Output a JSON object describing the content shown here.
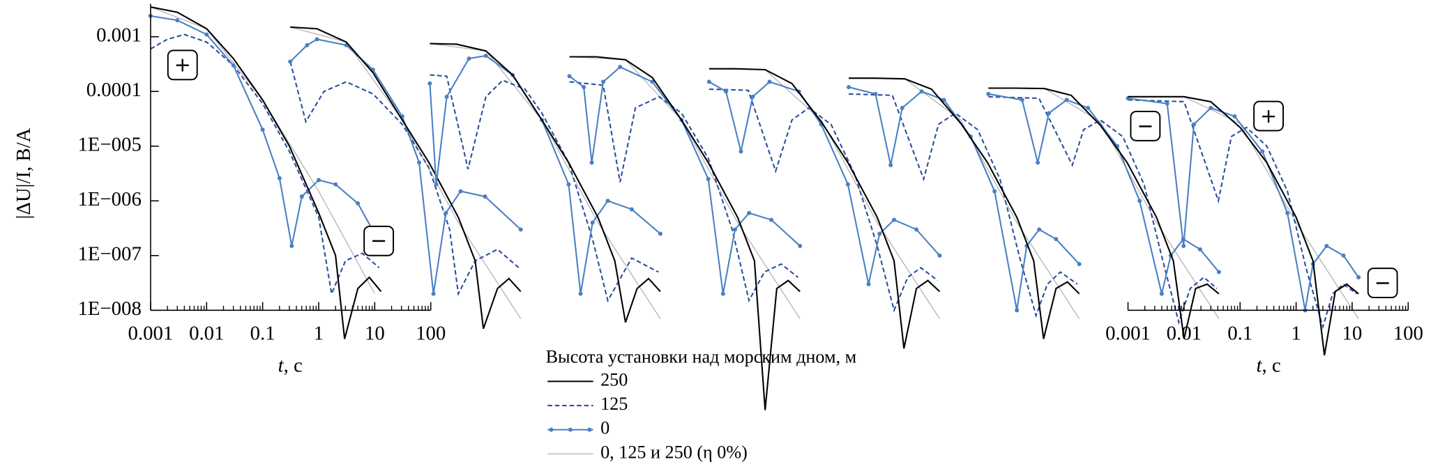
{
  "chart_data": [
    {
      "type": "line",
      "log_scale": [
        "x",
        "y"
      ],
      "ylabel": "|ΔU|/I, В/А",
      "xlabel": "t, с",
      "xlim": [
        0.001,
        100
      ],
      "xticks": [
        0.001,
        0.01,
        0.1,
        1,
        10,
        100
      ],
      "ylim": [
        1e-08,
        0.004
      ],
      "yticks": [
        0.001,
        0.0001,
        {
          "value": 1e-05,
          "label": "1E−005"
        },
        {
          "value": 1e-06,
          "label": "1E−006"
        },
        {
          "value": 1e-07,
          "label": "1E−007"
        },
        {
          "value": 1e-08,
          "label": "1E−008"
        }
      ],
      "legend_title": "Высота установки над морским дном, м",
      "annotations": [
        "+",
        "−"
      ],
      "series": [
        {
          "name": "250",
          "color": "#000000",
          "line_style": "solid",
          "x": [
            0.001,
            0.003,
            0.01,
            0.03,
            0.1,
            0.3,
            1,
            2,
            2.9,
            5,
            8,
            13
          ],
          "values": [
            0.0035,
            0.0028,
            0.0014,
            0.0004,
            7e-05,
            1e-05,
            6e-07,
            1e-07,
            3e-09,
            2.5e-08,
            4e-08,
            2.2e-08
          ]
        },
        {
          "name": "125",
          "color": "#2b4f9e",
          "line_style": "dashed",
          "x": [
            0.001,
            0.002,
            0.004,
            0.01,
            0.03,
            0.1,
            0.3,
            1,
            1.7,
            3,
            6,
            12
          ],
          "values": [
            0.0006,
            0.0009,
            0.0011,
            0.0008,
            0.0003,
            6e-05,
            8e-06,
            5e-07,
            2e-08,
            8e-08,
            1.1e-07,
            6e-08
          ]
        },
        {
          "name": "0",
          "color": "#4a80c4",
          "line_style": "solid",
          "marker": true,
          "x": [
            0.001,
            0.003,
            0.01,
            0.03,
            0.1,
            0.2,
            0.33,
            0.5,
            1,
            2,
            5,
            10
          ],
          "values": [
            0.0024,
            0.002,
            0.0011,
            0.0003,
            2e-05,
            2.6e-06,
            1.5e-07,
            1.2e-06,
            2.4e-06,
            2e-06,
            9e-07,
            2.5e-07
          ]
        },
        {
          "name": "0, 125 и 250 (η 0%)",
          "color": "#b4b4b4",
          "line_style": "thin",
          "x": [
            0.001,
            0.01,
            0.1,
            1,
            10
          ],
          "values": [
            0.0035,
            0.0014,
            7e-05,
            1.5e-06,
            2e-08
          ]
        }
      ]
    },
    {
      "type": "line",
      "series": [
        {
          "color": "#000000",
          "line_style": "solid",
          "x": [
            0.001,
            0.003,
            0.01,
            0.03,
            0.1,
            0.3,
            1,
            2,
            2.8,
            5,
            8,
            13
          ],
          "values": [
            0.0015,
            0.0014,
            0.0008,
            0.00022,
            3e-05,
            5e-06,
            5e-07,
            8e-08,
            4.6e-09,
            2.5e-08,
            3.8e-08,
            2.2e-08
          ]
        },
        {
          "color": "#2b4f9e",
          "line_style": "dashed",
          "x": [
            0.001,
            0.0019,
            0.004,
            0.01,
            0.03,
            0.1,
            0.3,
            0.7,
            1,
            2,
            5,
            12
          ],
          "values": [
            0.00035,
            2.8e-05,
            0.0001,
            0.00015,
            9e-05,
            2.5e-05,
            4e-06,
            3e-07,
            2e-08,
            8e-08,
            1.3e-07,
            6e-08
          ]
        },
        {
          "color": "#4a80c4",
          "line_style": "solid",
          "marker": true,
          "x": [
            0.001,
            0.002,
            0.003,
            0.01,
            0.03,
            0.1,
            0.2,
            0.36,
            0.6,
            1.1,
            3,
            13
          ],
          "values": [
            0.00035,
            0.0007,
            0.0009,
            0.0007,
            0.00025,
            3.5e-05,
            5e-06,
            2e-08,
            6e-07,
            1.5e-06,
            1.2e-06,
            3e-07
          ]
        },
        {
          "color": "#b4b4b4",
          "line_style": "thin",
          "x": [
            0.001,
            0.01,
            0.1,
            1,
            13
          ],
          "values": [
            0.0015,
            0.0008,
            3e-05,
            4e-07,
            7e-09
          ]
        }
      ]
    },
    {
      "type": "line",
      "series": [
        {
          "color": "#000000",
          "line_style": "solid",
          "x": [
            0.001,
            0.003,
            0.01,
            0.03,
            0.1,
            0.3,
            1,
            2,
            3.1,
            5,
            8,
            13
          ],
          "values": [
            0.00075,
            0.00073,
            0.00055,
            0.0002,
            3e-05,
            5e-06,
            5e-07,
            8e-08,
            6e-09,
            2.5e-08,
            3.8e-08,
            2.2e-08
          ]
        },
        {
          "color": "#2b4f9e",
          "line_style": "dashed",
          "x": [
            0.001,
            0.002,
            0.0048,
            0.01,
            0.02,
            0.05,
            0.1,
            0.3,
            0.8,
            1.5,
            4,
            12
          ],
          "values": [
            0.0002,
            0.00019,
            3.8e-06,
            8e-05,
            0.00016,
            0.00011,
            4e-05,
            5e-06,
            2e-07,
            1.5e-08,
            9e-08,
            5e-08
          ]
        },
        {
          "color": "#4a80c4",
          "line_style": "solid",
          "marker": true,
          "x": [
            0.001,
            0.0013,
            0.002,
            0.005,
            0.01,
            0.03,
            0.1,
            0.3,
            0.49,
            0.8,
            1.5,
            4,
            13
          ],
          "values": [
            0.00014,
            2e-06,
            8e-05,
            0.0004,
            0.00045,
            0.0002,
            3e-05,
            2e-06,
            2e-08,
            4e-07,
            1e-06,
            7e-07,
            2.5e-07
          ]
        },
        {
          "color": "#b4b4b4",
          "line_style": "thin",
          "x": [
            0.001,
            0.01,
            0.1,
            1,
            13
          ],
          "values": [
            0.00075,
            0.00055,
            3e-05,
            4e-07,
            7e-09
          ]
        }
      ]
    },
    {
      "type": "line",
      "series": [
        {
          "color": "#000000",
          "line_style": "solid",
          "x": [
            0.001,
            0.003,
            0.01,
            0.03,
            0.1,
            0.3,
            1,
            2,
            3.1,
            5,
            8,
            13
          ],
          "values": [
            0.00043,
            0.00043,
            0.00038,
            0.00018,
            3e-05,
            5e-06,
            5e-07,
            8e-08,
            1.5e-10,
            2.5e-08,
            3.5e-08,
            2.2e-08
          ]
        },
        {
          "color": "#2b4f9e",
          "line_style": "dashed",
          "x": [
            0.001,
            0.004,
            0.008,
            0.015,
            0.04,
            0.1,
            0.3,
            0.8,
            1.6,
            3,
            6,
            12
          ],
          "values": [
            0.00015,
            0.00013,
            2.2e-06,
            5e-05,
            8e-05,
            4e-05,
            6e-06,
            3e-07,
            1.5e-08,
            5e-08,
            7e-08,
            4e-08
          ]
        },
        {
          "color": "#4a80c4",
          "line_style": "solid",
          "marker": true,
          "x": [
            0.001,
            0.0018,
            0.0025,
            0.004,
            0.008,
            0.03,
            0.1,
            0.3,
            0.55,
            0.9,
            1.6,
            4,
            13
          ],
          "values": [
            0.00019,
            0.00012,
            5e-06,
            0.00015,
            0.00028,
            0.00015,
            3e-05,
            2.5e-06,
            2e-08,
            3e-07,
            6e-07,
            4.5e-07,
            1.5e-07
          ]
        },
        {
          "color": "#b4b4b4",
          "line_style": "thin",
          "x": [
            0.001,
            0.01,
            0.1,
            1,
            13
          ],
          "values": [
            0.00043,
            0.00038,
            3e-05,
            4e-07,
            7e-09
          ]
        }
      ]
    },
    {
      "type": "line",
      "series": [
        {
          "color": "#000000",
          "line_style": "solid",
          "x": [
            0.001,
            0.003,
            0.01,
            0.03,
            0.1,
            0.3,
            1,
            2,
            3,
            5,
            8,
            13
          ],
          "values": [
            0.00026,
            0.00026,
            0.00025,
            0.00014,
            2.8e-05,
            5e-06,
            5e-07,
            8e-08,
            2e-09,
            2.5e-08,
            3.5e-08,
            2.2e-08
          ]
        },
        {
          "color": "#2b4f9e",
          "line_style": "dashed",
          "x": [
            0.001,
            0.005,
            0.0154,
            0.03,
            0.06,
            0.15,
            0.4,
            1,
            2,
            3.5,
            6,
            12
          ],
          "values": [
            0.00011,
            0.000105,
            3.5e-06,
            3e-05,
            5e-05,
            2.5e-05,
            3e-06,
            1.5e-07,
            1e-08,
            4e-08,
            6e-08,
            3.5e-08
          ]
        },
        {
          "color": "#4a80c4",
          "line_style": "solid",
          "marker": true,
          "x": [
            0.001,
            0.002,
            0.0037,
            0.006,
            0.012,
            0.04,
            0.1,
            0.3,
            0.7,
            1.1,
            2,
            5,
            13
          ],
          "values": [
            0.00015,
            0.0001,
            8e-06,
            8e-05,
            0.00015,
            0.0001,
            2.5e-05,
            2e-06,
            3e-08,
            2.5e-07,
            4.5e-07,
            3e-07,
            1e-07
          ]
        },
        {
          "color": "#b4b4b4",
          "line_style": "thin",
          "x": [
            0.001,
            0.01,
            0.1,
            1,
            13
          ],
          "values": [
            0.00026,
            0.00025,
            3e-05,
            4e-07,
            7e-09
          ]
        }
      ]
    },
    {
      "type": "line",
      "series": [
        {
          "color": "#000000",
          "line_style": "solid",
          "x": [
            0.001,
            0.003,
            0.01,
            0.03,
            0.1,
            0.3,
            1,
            2,
            3,
            5,
            8,
            13
          ],
          "values": [
            0.000175,
            0.000175,
            0.00017,
            0.00011,
            2.6e-05,
            5e-06,
            5e-07,
            8e-08,
            3e-09,
            2.5e-08,
            3.3e-08,
            2e-08
          ]
        },
        {
          "color": "#2b4f9e",
          "line_style": "dashed",
          "x": [
            0.001,
            0.006,
            0.0217,
            0.04,
            0.08,
            0.2,
            0.5,
            1.1,
            2.2,
            3.5,
            6,
            12
          ],
          "values": [
            9e-05,
            8.5e-05,
            2.5e-06,
            2.5e-05,
            4e-05,
            2e-05,
            2.5e-06,
            1e-07,
            8e-09,
            3e-08,
            5e-08,
            3e-08
          ]
        },
        {
          "color": "#4a80c4",
          "line_style": "solid",
          "marker": true,
          "x": [
            0.001,
            0.003,
            0.0056,
            0.009,
            0.02,
            0.05,
            0.15,
            0.4,
            1,
            1.5,
            2.5,
            5,
            13
          ],
          "values": [
            0.00012,
            9e-05,
            4.5e-06,
            5e-05,
            0.0001,
            7e-05,
            1.5e-05,
            1.5e-06,
            1e-08,
            1.5e-07,
            3e-07,
            2e-07,
            7e-08
          ]
        },
        {
          "color": "#b4b4b4",
          "line_style": "thin",
          "x": [
            0.001,
            0.01,
            0.1,
            1,
            13
          ],
          "values": [
            0.000175,
            0.00017,
            3e-05,
            4e-07,
            7e-09
          ]
        }
      ]
    },
    {
      "type": "line",
      "series": [
        {
          "color": "#000000",
          "line_style": "solid",
          "x": [
            0.001,
            0.003,
            0.01,
            0.03,
            0.1,
            0.3,
            1,
            2,
            3.1,
            5,
            8,
            13
          ],
          "values": [
            0.000115,
            0.000115,
            0.000113,
            8.5e-05,
            2.4e-05,
            5e-06,
            5e-07,
            8e-08,
            3e-09,
            2.5e-08,
            3e-08,
            2e-08
          ]
        },
        {
          "color": "#2b4f9e",
          "line_style": "dashed",
          "x": [
            0.001,
            0.008,
            0.0315,
            0.05,
            0.1,
            0.25,
            0.6,
            1.3,
            2.5,
            4,
            7,
            12
          ],
          "values": [
            8e-05,
            7.5e-05,
            4.5e-06,
            2e-05,
            3e-05,
            1.5e-05,
            2e-06,
            8e-08,
            6e-09,
            2.5e-08,
            4e-08,
            2.5e-08
          ]
        },
        {
          "color": "#4a80c4",
          "line_style": "solid",
          "marker": true,
          "x": [
            0.001,
            0.004,
            0.0076,
            0.012,
            0.025,
            0.06,
            0.2,
            0.5,
            1.24,
            1.8,
            3,
            6,
            13
          ],
          "values": [
            9e-05,
            7e-05,
            5e-06,
            4e-05,
            7e-05,
            5e-05,
            1e-05,
            1e-06,
            2e-08,
            1e-07,
            2e-07,
            1.3e-07,
            5e-08
          ]
        },
        {
          "color": "#b4b4b4",
          "line_style": "thin",
          "x": [
            0.001,
            0.01,
            0.1,
            1,
            13
          ],
          "values": [
            0.000115,
            0.000113,
            2.8e-05,
            4e-07,
            7e-09
          ]
        }
      ]
    },
    {
      "type": "line",
      "xlabel": "t, с",
      "xlim": [
        0.001,
        100
      ],
      "xticks": [
        0.001,
        0.01,
        0.1,
        1,
        10,
        100
      ],
      "annotations": [
        "−",
        "+",
        "−"
      ],
      "series": [
        {
          "color": "#000000",
          "line_style": "solid",
          "x": [
            0.001,
            0.003,
            0.01,
            0.03,
            0.1,
            0.3,
            1,
            2,
            3.2,
            5,
            8,
            13
          ],
          "values": [
            8e-05,
            8e-05,
            8e-05,
            6.5e-05,
            2.2e-05,
            5e-06,
            5e-07,
            8e-08,
            1.5e-09,
            2.2e-08,
            3e-08,
            2e-08
          ]
        },
        {
          "color": "#2b4f9e",
          "line_style": "dashed",
          "x": [
            0.001,
            0.01,
            0.041,
            0.07,
            0.13,
            0.3,
            0.7,
            1.5,
            3,
            4.5,
            7,
            12
          ],
          "values": [
            7e-05,
            6.5e-05,
            1e-06,
            1.5e-05,
            2.2e-05,
            1e-05,
            1.5e-06,
            6e-08,
            5e-09,
            2e-08,
            3e-08,
            2e-08
          ]
        },
        {
          "color": "#4a80c4",
          "line_style": "solid",
          "marker": true,
          "x": [
            0.001,
            0.005,
            0.0098,
            0.015,
            0.03,
            0.08,
            0.25,
            0.7,
            1.45,
            2,
            3.5,
            7,
            13
          ],
          "values": [
            7.5e-05,
            6e-05,
            1.5e-07,
            2.5e-05,
            5e-05,
            3.5e-05,
            8e-06,
            6e-07,
            1e-08,
            7e-08,
            1.5e-07,
            1e-07,
            4e-08
          ]
        },
        {
          "color": "#b4b4b4",
          "line_style": "thin",
          "x": [
            0.001,
            0.01,
            0.1,
            1,
            13
          ],
          "values": [
            8e-05,
            8e-05,
            2.6e-05,
            4e-07,
            7e-09
          ]
        }
      ]
    }
  ]
}
